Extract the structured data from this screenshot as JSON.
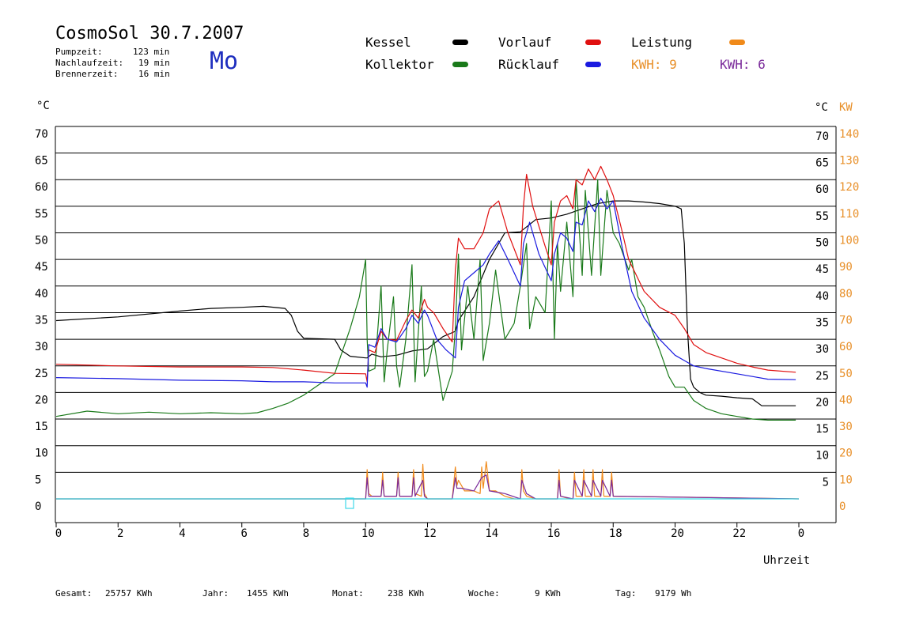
{
  "header": {
    "title": "CosmoSol 30.7.2007",
    "stats": [
      {
        "label": "Pumpzeit:",
        "value": "123 min"
      },
      {
        "label": "Nachlaufzeit:",
        "value": "19 min"
      },
      {
        "label": "Brennerzeit:",
        "value": "16 min"
      }
    ],
    "day": "Mo"
  },
  "legend": {
    "kessel": {
      "label": "Kessel",
      "color": "#000000"
    },
    "kollektor": {
      "label": "Kollektor",
      "color": "#1a7a1a"
    },
    "vorlauf": {
      "label": "Vorlauf",
      "color": "#e01010"
    },
    "ruecklauf": {
      "label": "Rücklauf",
      "color": "#1a1ae0"
    },
    "leistung": {
      "label": "Leistung",
      "color": "#f08a1a"
    },
    "kwh1": {
      "label": "KWH: 9",
      "color": "#e8902a"
    },
    "kwh2": {
      "label": "KWH: 6",
      "color": "#7a2a9a"
    }
  },
  "axes": {
    "left_unit": "°C",
    "right_unit_c": "°C",
    "right_unit_kw": "KW",
    "xlabel": "Uhrzeit"
  },
  "footer": {
    "gesamt_label": "Gesamt:",
    "gesamt_value": "25757 KWh",
    "jahr_label": "Jahr:",
    "jahr_value": "1455 KWh",
    "monat_label": "Monat:",
    "monat_value": "238 KWh",
    "woche_label": "Woche:",
    "woche_value": "9 KWh",
    "tag_label": "Tag:",
    "tag_value": "9179 Wh"
  },
  "chart_data": {
    "type": "line",
    "xlabel": "Uhrzeit",
    "ylabel_left": "°C",
    "ylabel_right": "KW",
    "xlim": [
      0,
      24
    ],
    "ylim_left": [
      -4,
      74
    ],
    "ylim_right": [
      -8,
      148
    ],
    "x_ticks": [
      "0",
      "2",
      "4",
      "6",
      "8",
      "10",
      "12",
      "14",
      "16",
      "18",
      "20",
      "22",
      "0"
    ],
    "y_ticks_left": [
      "0",
      "5",
      "10",
      "15",
      "20",
      "25",
      "30",
      "35",
      "40",
      "45",
      "50",
      "55",
      "60",
      "65",
      "70"
    ],
    "y_ticks_right_c": [
      "5",
      "10",
      "15",
      "20",
      "25",
      "30",
      "35",
      "40",
      "45",
      "50",
      "55",
      "60",
      "65",
      "70"
    ],
    "y_ticks_right_kw": [
      "0",
      "10",
      "20",
      "30",
      "40",
      "50",
      "60",
      "70",
      "80",
      "90",
      "100",
      "110",
      "120",
      "130",
      "140"
    ],
    "grid": true,
    "series": [
      {
        "name": "Kessel",
        "color": "#000000",
        "x": [
          0,
          2,
          4,
          5,
          6,
          6.7,
          7.4,
          7.6,
          7.8,
          8.0,
          9.0,
          9.2,
          9.5,
          10.0,
          10.05,
          10.2,
          10.5,
          11.0,
          11.5,
          12.0,
          12.5,
          12.9,
          13.0,
          13.5,
          14.0,
          14.5,
          15.0,
          15.5,
          16.0,
          16.5,
          17.0,
          17.5,
          18.0,
          18.5,
          19.0,
          19.5,
          20.0,
          20.2,
          20.3,
          20.4,
          20.5,
          20.6,
          20.8,
          21.0,
          21.5,
          22.0,
          22.5,
          22.8,
          23.0,
          23.9
        ],
        "y": [
          33.5,
          34.2,
          35.3,
          35.8,
          36.0,
          36.2,
          35.8,
          34.5,
          31.5,
          30.2,
          30.0,
          28.0,
          26.8,
          26.5,
          26.5,
          27.2,
          26.7,
          27.0,
          27.8,
          28.2,
          30.5,
          31.5,
          33.5,
          38.0,
          45.0,
          50.0,
          50.2,
          52.5,
          52.8,
          53.5,
          54.5,
          55.5,
          56.0,
          56.0,
          55.8,
          55.5,
          55.0,
          54.5,
          48.0,
          32.0,
          22.5,
          21.0,
          20.0,
          19.5,
          19.3,
          19.0,
          18.8,
          17.5,
          17.5,
          17.5
        ]
      },
      {
        "name": "Kollektor",
        "color": "#1a7a1a",
        "x": [
          0,
          1,
          2,
          3,
          4,
          5,
          6,
          6.5,
          7,
          7.5,
          8,
          8.5,
          9,
          9.5,
          9.8,
          10.0,
          10.05,
          10.1,
          10.3,
          10.5,
          10.6,
          10.7,
          10.9,
          11.0,
          11.1,
          11.3,
          11.5,
          11.6,
          11.8,
          11.9,
          12.0,
          12.2,
          12.5,
          12.8,
          12.9,
          13.0,
          13.1,
          13.3,
          13.5,
          13.7,
          13.8,
          14.0,
          14.2,
          14.5,
          14.8,
          15.0,
          15.2,
          15.3,
          15.5,
          15.8,
          16.0,
          16.1,
          16.2,
          16.3,
          16.5,
          16.7,
          16.8,
          17.0,
          17.1,
          17.3,
          17.5,
          17.6,
          17.8,
          18.0,
          18.2,
          18.5,
          18.6,
          18.8,
          19.0,
          19.3,
          19.5,
          19.8,
          20.0,
          20.3,
          20.6,
          21.0,
          21.5,
          22.0,
          22.5,
          23.0,
          23.9
        ],
        "y": [
          15.5,
          16.5,
          16.0,
          16.3,
          16.0,
          16.2,
          16.0,
          16.2,
          17.0,
          18.0,
          19.5,
          21.5,
          23.5,
          32.0,
          38.0,
          45.0,
          30.0,
          24.0,
          24.5,
          40.0,
          22.0,
          28.0,
          38.0,
          25.0,
          21.0,
          30.0,
          44.0,
          22.0,
          40.0,
          23.0,
          24.0,
          30.0,
          18.5,
          24.0,
          32.0,
          46.0,
          28.0,
          40.0,
          30.0,
          45.0,
          26.0,
          33.0,
          43.0,
          30.0,
          33.0,
          40.0,
          48.0,
          32.0,
          38.0,
          35.0,
          56.0,
          30.0,
          48.0,
          39.0,
          52.0,
          38.0,
          60.0,
          42.0,
          58.0,
          42.0,
          60.0,
          42.0,
          58.0,
          50.0,
          48.0,
          43.0,
          45.0,
          38.0,
          36.0,
          31.0,
          28.0,
          23.0,
          21.0,
          21.0,
          18.5,
          17.0,
          16.0,
          15.5,
          15.0,
          14.8,
          14.8
        ]
      },
      {
        "name": "Vorlauf",
        "color": "#e01010",
        "x": [
          0,
          2,
          4,
          6,
          7,
          8,
          9,
          10.0,
          10.05,
          10.1,
          10.3,
          10.5,
          10.7,
          11.0,
          11.3,
          11.5,
          11.7,
          11.9,
          12.0,
          12.2,
          12.5,
          12.8,
          12.9,
          13.0,
          13.2,
          13.5,
          13.8,
          14.0,
          14.3,
          14.6,
          15.0,
          15.1,
          15.2,
          15.4,
          15.8,
          16.0,
          16.1,
          16.3,
          16.5,
          16.7,
          16.8,
          17.0,
          17.2,
          17.4,
          17.6,
          17.8,
          18.0,
          18.3,
          18.5,
          19.0,
          19.5,
          20.0,
          20.3,
          20.6,
          21.0,
          22.0,
          22.5,
          23.0,
          23.9
        ],
        "y": [
          25.3,
          25.0,
          24.8,
          24.8,
          24.7,
          24.2,
          23.6,
          23.5,
          22.0,
          28.0,
          27.5,
          31.5,
          30.0,
          29.8,
          33.5,
          35.5,
          34.0,
          37.5,
          36.0,
          35.0,
          32.0,
          29.5,
          43.0,
          49.0,
          47.0,
          47.0,
          50.0,
          54.5,
          56.0,
          50.0,
          44.0,
          55.0,
          61.0,
          55.0,
          47.5,
          44.0,
          52.0,
          56.0,
          57.0,
          54.5,
          60.0,
          59.0,
          62.0,
          60.0,
          62.5,
          60.0,
          57.0,
          50.0,
          45.0,
          39.0,
          36.0,
          34.5,
          32.0,
          29.0,
          27.5,
          25.5,
          24.8,
          24.2,
          23.8
        ]
      },
      {
        "name": "Rücklauf",
        "color": "#1a1ae0",
        "x": [
          0,
          2,
          4,
          6,
          7,
          8,
          9,
          10.0,
          10.05,
          10.1,
          10.3,
          10.5,
          10.7,
          11.0,
          11.3,
          11.5,
          11.7,
          11.9,
          12.0,
          12.3,
          12.6,
          12.9,
          13.0,
          13.2,
          13.5,
          13.8,
          14.0,
          14.3,
          14.6,
          15.0,
          15.1,
          15.3,
          15.6,
          16.0,
          16.1,
          16.3,
          16.5,
          16.7,
          16.8,
          17.0,
          17.2,
          17.4,
          17.6,
          17.8,
          18.0,
          18.3,
          18.6,
          19.0,
          19.5,
          20.0,
          20.3,
          20.6,
          21.0,
          22.0,
          22.5,
          23.0,
          23.9
        ],
        "y": [
          22.8,
          22.6,
          22.3,
          22.2,
          22.0,
          22.0,
          21.8,
          21.8,
          21.0,
          29.0,
          28.5,
          32.0,
          30.0,
          29.5,
          32.0,
          34.5,
          33.0,
          35.5,
          34.5,
          30.0,
          28.0,
          26.5,
          36.0,
          41.0,
          42.5,
          44.0,
          46.0,
          48.5,
          45.0,
          40.0,
          48.0,
          52.0,
          46.0,
          41.0,
          46.0,
          50.0,
          49.0,
          46.5,
          52.0,
          51.5,
          56.0,
          54.0,
          56.5,
          54.5,
          56.0,
          47.0,
          39.0,
          34.0,
          30.0,
          27.0,
          26.0,
          25.0,
          24.5,
          23.5,
          23.0,
          22.5,
          22.4
        ]
      },
      {
        "name": "Leistung",
        "color": "#f08a1a",
        "axis": "right",
        "x": [
          0,
          10.0,
          10.05,
          10.1,
          10.2,
          10.5,
          10.55,
          10.6,
          10.8,
          11.0,
          11.05,
          11.1,
          11.3,
          11.5,
          11.55,
          11.6,
          11.8,
          11.85,
          11.9,
          12.0,
          12.8,
          12.9,
          12.95,
          13.0,
          13.1,
          13.2,
          13.5,
          13.7,
          13.75,
          13.8,
          13.9,
          14.0,
          14.2,
          14.5,
          14.8,
          15.0,
          15.05,
          15.1,
          15.2,
          15.5,
          15.8,
          16.0,
          16.2,
          16.25,
          16.3,
          16.6,
          16.7,
          16.75,
          16.8,
          17.0,
          17.05,
          17.1,
          17.3,
          17.35,
          17.4,
          17.6,
          17.65,
          17.7,
          17.9,
          17.95,
          18.0,
          24.0
        ],
        "y": [
          0,
          0,
          11,
          2,
          1,
          1,
          10,
          1,
          1,
          1,
          10,
          1,
          1,
          1,
          11,
          2,
          1,
          13,
          2,
          0,
          0,
          12,
          5,
          7,
          5,
          3,
          3,
          2,
          12,
          4,
          14,
          3,
          3,
          1,
          0,
          0,
          11,
          3,
          1,
          0,
          0,
          0,
          0,
          11,
          1,
          0,
          0,
          10,
          1,
          1,
          11,
          1,
          1,
          11,
          1,
          1,
          11,
          1,
          1,
          10,
          1,
          0
        ]
      },
      {
        "name": "",
        "color": "#7a2a9a",
        "axis": "right",
        "x": [
          0,
          10.0,
          10.05,
          10.1,
          10.5,
          10.55,
          10.6,
          11.0,
          11.05,
          11.1,
          11.5,
          11.55,
          11.6,
          11.85,
          11.9,
          12.0,
          12.8,
          12.9,
          12.95,
          13.1,
          13.5,
          13.75,
          13.9,
          14.0,
          14.5,
          15.0,
          15.05,
          15.2,
          15.5,
          16.2,
          16.25,
          16.3,
          16.7,
          16.75,
          17.0,
          17.05,
          17.3,
          17.35,
          17.6,
          17.65,
          17.9,
          17.95,
          18.0,
          24.0
        ],
        "y": [
          0,
          0,
          8,
          1,
          1,
          7,
          1,
          1,
          8,
          1,
          1,
          8,
          1,
          7,
          1,
          0,
          0,
          8,
          4,
          4,
          3,
          8,
          9,
          3,
          2,
          0,
          7,
          2,
          0,
          0,
          7,
          1,
          0,
          7,
          1,
          7,
          1,
          7,
          1,
          7,
          1,
          7,
          1,
          0
        ]
      },
      {
        "name": "",
        "color": "#40d8e8",
        "axis": "right",
        "x": [
          0,
          24
        ],
        "y": [
          0,
          0
        ]
      }
    ]
  }
}
